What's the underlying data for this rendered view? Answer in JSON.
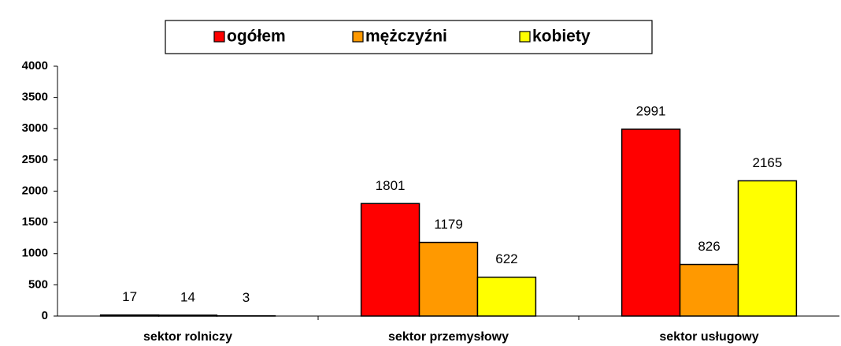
{
  "chart_data": {
    "type": "bar",
    "categories": [
      "sektor rolniczy",
      "sektor przemysłowy",
      "sektor usługowy"
    ],
    "series": [
      {
        "name": "ogółem",
        "color": "#ff0000",
        "values": [
          17,
          1801,
          2991
        ]
      },
      {
        "name": "mężczyźni",
        "color": "#ff9900",
        "values": [
          14,
          1179,
          826
        ]
      },
      {
        "name": "kobiety",
        "color": "#ffff00",
        "values": [
          3,
          622,
          2165
        ]
      }
    ],
    "ylim": [
      0,
      4000
    ],
    "yticks": [
      0,
      500,
      1000,
      1500,
      2000,
      2500,
      3000,
      3500,
      4000
    ],
    "grid": false,
    "legend": "top"
  }
}
